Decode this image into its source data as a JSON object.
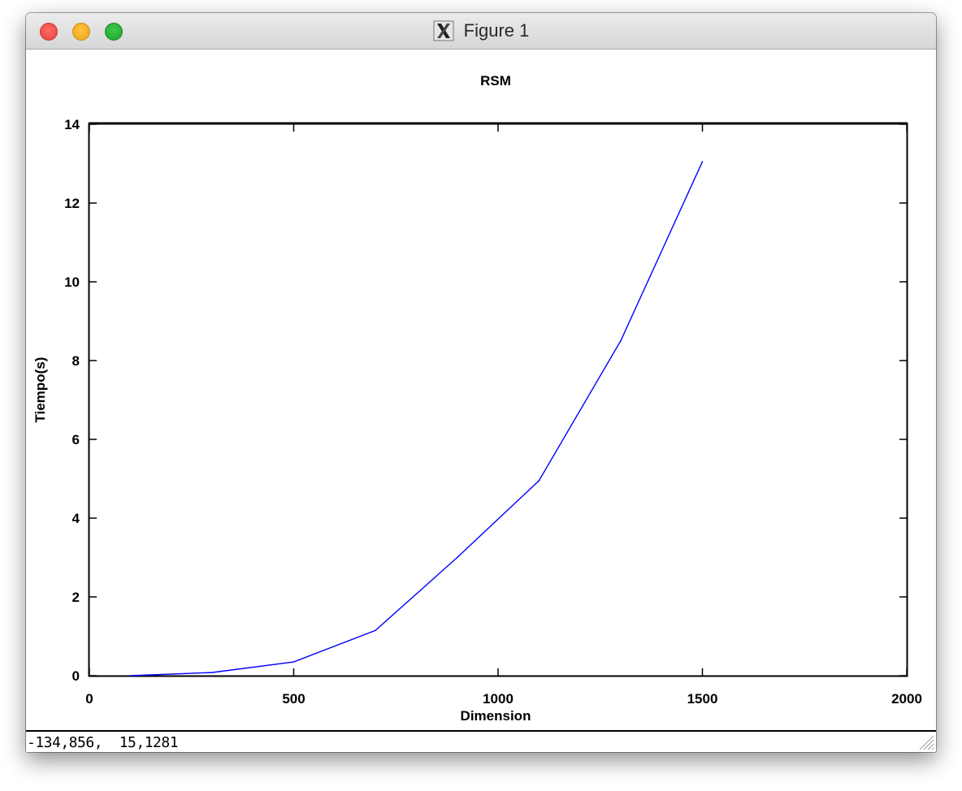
{
  "window": {
    "title": "Figure 1",
    "title_icon": "x11-icon",
    "buttons": [
      "close",
      "minimize",
      "zoom"
    ]
  },
  "status": {
    "coordinates": "-134,856,  15,1281"
  },
  "colors": {
    "line": "#0000ff",
    "axes": "#000000",
    "close": "#fe5f57",
    "minimize": "#febc2e",
    "zoom": "#28c840"
  },
  "chart_data": {
    "type": "line",
    "title": "RSM",
    "xlabel": "Dimension",
    "ylabel": "Tiempo(s)",
    "xlim": [
      0,
      2000
    ],
    "ylim": [
      0,
      14
    ],
    "xticks": [
      0,
      500,
      1000,
      1500,
      2000
    ],
    "yticks": [
      0,
      2,
      4,
      6,
      8,
      10,
      12,
      14
    ],
    "grid": false,
    "series": [
      {
        "x": [
          100,
          300,
          500,
          700,
          900,
          1100,
          1300,
          1500
        ],
        "y": [
          0.0,
          0.08,
          0.35,
          1.15,
          3.0,
          4.95,
          8.5,
          13.05
        ]
      }
    ]
  }
}
